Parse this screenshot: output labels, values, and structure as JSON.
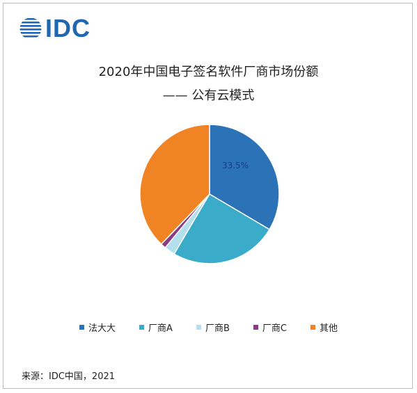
{
  "logo": {
    "text": "IDC",
    "color": "#1f66b3"
  },
  "title_line1": "2020年中国电子签名软件厂商市场份额",
  "title_line2": "—— 公有云模式",
  "source": "来源：IDC中国，2021",
  "chart_data": {
    "type": "pie",
    "title": "2020年中国电子签名软件厂商市场份额 —— 公有云模式",
    "legend_position": "bottom",
    "slices": [
      {
        "name": "法大大",
        "value": 33.5,
        "color": "#2b73b6",
        "label": "33.5%"
      },
      {
        "name": "厂商A",
        "value": 25.0,
        "color": "#3aacc9",
        "label": ""
      },
      {
        "name": "厂商B",
        "value": 2.5,
        "color": "#b4e0ee",
        "label": ""
      },
      {
        "name": "厂商C",
        "value": 1.2,
        "color": "#8b3a87",
        "label": ""
      },
      {
        "name": "其他",
        "value": 37.8,
        "color": "#f08323",
        "label": ""
      }
    ]
  }
}
